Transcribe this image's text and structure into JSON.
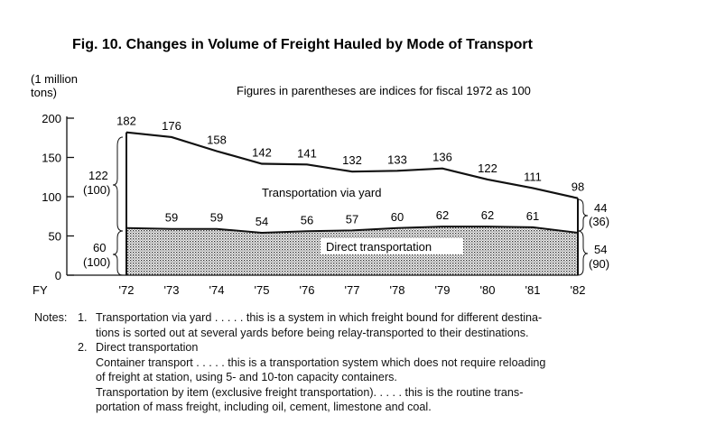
{
  "title": "Fig. 10.  Changes in Volume of Freight Hauled by Mode of Transport",
  "subtitle": "Figures in parentheses are indices for fiscal 1972 as 100",
  "chart_data": {
    "type": "area",
    "stacked": true,
    "x_prefix": "FY",
    "categories": [
      "'72",
      "'73",
      "'74",
      "'75",
      "'76",
      "'77",
      "'78",
      "'79",
      "'80",
      "'81",
      "'82"
    ],
    "ylabel_line1": "(1 million",
    "ylabel_line2": "tons)",
    "ylim": [
      0,
      200
    ],
    "yticks": [
      "0",
      "50",
      "100",
      "150",
      "200"
    ],
    "total_values": [
      182,
      176,
      158,
      142,
      141,
      132,
      133,
      136,
      122,
      111,
      98
    ],
    "series": [
      {
        "name": "Direct transportation",
        "values": [
          60,
          59,
          59,
          54,
          56,
          57,
          60,
          62,
          62,
          61,
          54
        ]
      },
      {
        "name": "Transportation via yard",
        "values": [
          122,
          117,
          99,
          88,
          85,
          75,
          73,
          74,
          60,
          50,
          44
        ]
      }
    ],
    "total_labels": [
      "182",
      "176",
      "158",
      "142",
      "141",
      "132",
      "133",
      "136",
      "122",
      "111",
      "98"
    ],
    "direct_labels": [
      "",
      "59",
      "59",
      "54",
      "56",
      "57",
      "60",
      "62",
      "62",
      "61",
      ""
    ],
    "brackets": {
      "left_yard_value": "122",
      "left_yard_index": "(100)",
      "left_direct_value": "60",
      "left_direct_index": "(100)",
      "right_yard_value": "44",
      "right_yard_index": "(36)",
      "right_direct_value": "54",
      "right_direct_index": "(90)"
    },
    "grid": false,
    "fill_direct": "dotted-pattern"
  },
  "notes": {
    "heading": "Notes:",
    "n1_num": "1.",
    "n1_line1": "Transportation via yard . . . . . this is a system in which freight bound for different destina-",
    "n1_line2": "tions is sorted out at several yards before being relay-transported to their destinations.",
    "n2_num": "2.",
    "n2_title": "Direct transportation",
    "n2_a_line1": "Container transport . . . . . this is a transportation system which does not require reloading",
    "n2_a_line2": "of freight at station, using 5- and 10-ton capacity containers.",
    "n2_b_line1": "Transportation by item (exclusive freight transportation). . . . . this is the routine trans-",
    "n2_b_line2": "portation of mass freight, including oil, cement, limestone and coal."
  }
}
